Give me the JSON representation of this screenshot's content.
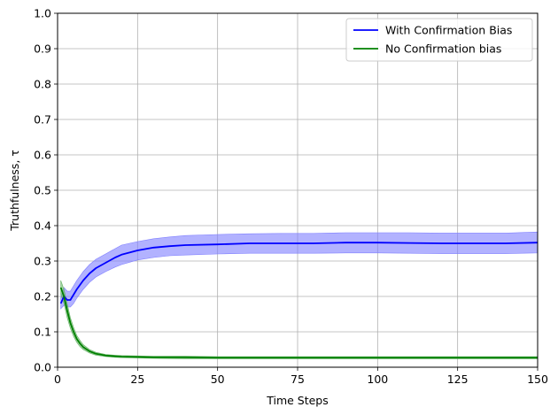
{
  "chart_data": {
    "type": "line",
    "xlabel": "Time Steps",
    "ylabel": "Truthfulness, τ",
    "xlim": [
      0,
      150
    ],
    "ylim": [
      0.0,
      1.0
    ],
    "xticks": [
      0,
      25,
      50,
      75,
      100,
      125,
      150
    ],
    "xtick_labels": [
      "0",
      "25",
      "50",
      "75",
      "100",
      "125",
      "150"
    ],
    "yticks": [
      0.0,
      0.1,
      0.2,
      0.3,
      0.4,
      0.5,
      0.6,
      0.7,
      0.8,
      0.9,
      1.0
    ],
    "ytick_labels": [
      "0.0",
      "0.1",
      "0.2",
      "0.3",
      "0.4",
      "0.5",
      "0.6",
      "0.7",
      "0.8",
      "0.9",
      "1.0"
    ],
    "grid": true,
    "legend_position": "top-right",
    "series": [
      {
        "name": "With Confirmation Bias",
        "color": "#0000ff",
        "band_color": "#7f7fff",
        "x": [
          1,
          2,
          3,
          4,
          5,
          6,
          8,
          10,
          12,
          15,
          18,
          20,
          25,
          30,
          35,
          40,
          50,
          60,
          70,
          80,
          90,
          100,
          110,
          120,
          130,
          140,
          150
        ],
        "values": [
          0.18,
          0.2,
          0.19,
          0.19,
          0.205,
          0.22,
          0.245,
          0.265,
          0.28,
          0.295,
          0.31,
          0.318,
          0.33,
          0.338,
          0.342,
          0.345,
          0.347,
          0.35,
          0.35,
          0.35,
          0.352,
          0.352,
          0.351,
          0.35,
          0.35,
          0.35,
          0.352
        ],
        "lower": [
          0.165,
          0.175,
          0.17,
          0.17,
          0.18,
          0.195,
          0.22,
          0.24,
          0.255,
          0.27,
          0.283,
          0.29,
          0.303,
          0.31,
          0.315,
          0.317,
          0.32,
          0.322,
          0.322,
          0.322,
          0.323,
          0.323,
          0.322,
          0.321,
          0.321,
          0.321,
          0.323
        ],
        "upper": [
          0.2,
          0.225,
          0.215,
          0.215,
          0.23,
          0.245,
          0.27,
          0.29,
          0.305,
          0.32,
          0.335,
          0.345,
          0.355,
          0.363,
          0.368,
          0.372,
          0.375,
          0.377,
          0.378,
          0.378,
          0.38,
          0.38,
          0.38,
          0.379,
          0.379,
          0.379,
          0.382
        ]
      },
      {
        "name": "No Confirmation bias",
        "color": "#008000",
        "band_color": "#66b366",
        "x": [
          1,
          2,
          3,
          4,
          5,
          6,
          7,
          8,
          10,
          12,
          15,
          18,
          20,
          25,
          30,
          40,
          50,
          75,
          100,
          125,
          150
        ],
        "values": [
          0.225,
          0.2,
          0.16,
          0.125,
          0.1,
          0.08,
          0.067,
          0.057,
          0.045,
          0.038,
          0.033,
          0.031,
          0.03,
          0.029,
          0.028,
          0.028,
          0.027,
          0.027,
          0.027,
          0.027,
          0.027
        ],
        "lower": [
          0.205,
          0.18,
          0.14,
          0.11,
          0.087,
          0.07,
          0.058,
          0.05,
          0.04,
          0.034,
          0.03,
          0.028,
          0.027,
          0.026,
          0.025,
          0.024,
          0.024,
          0.024,
          0.024,
          0.024,
          0.024
        ],
        "upper": [
          0.245,
          0.22,
          0.18,
          0.14,
          0.113,
          0.09,
          0.076,
          0.064,
          0.05,
          0.042,
          0.036,
          0.034,
          0.033,
          0.032,
          0.031,
          0.031,
          0.03,
          0.03,
          0.03,
          0.03,
          0.03
        ]
      }
    ]
  }
}
